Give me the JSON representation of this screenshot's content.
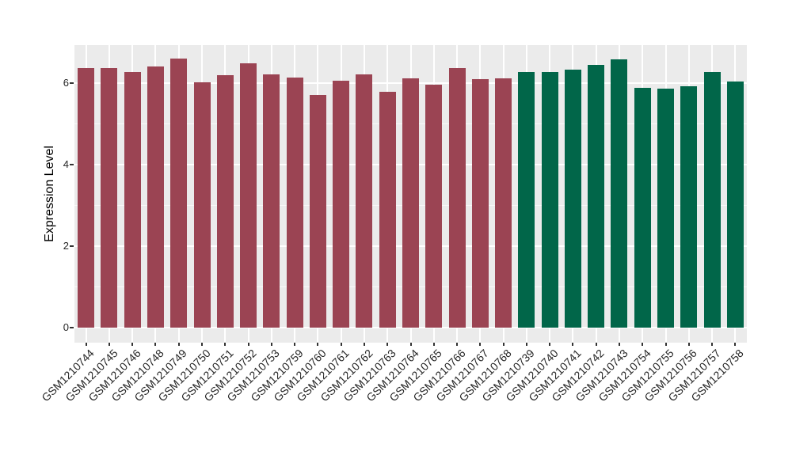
{
  "figure": {
    "background": "#FFFFFF",
    "panel_background": "#EBEBEB",
    "gridline_color": "#FFFFFF",
    "tick_mark_color": "#333333",
    "axis_text_color": "#262626"
  },
  "chart_data": {
    "type": "bar",
    "title": "",
    "xlabel": "",
    "ylabel": "Expression Level",
    "ylim": [
      0,
      6.9
    ],
    "y_major_ticks": [
      0,
      2,
      4,
      6
    ],
    "y_minor_gridlines": [
      1,
      3,
      5
    ],
    "grid": "on",
    "legend_position": "none",
    "categories": [
      "GSM1210744",
      "GSM1210745",
      "GSM1210746",
      "GSM1210748",
      "GSM1210749",
      "GSM1210750",
      "GSM1210751",
      "GSM1210752",
      "GSM1210753",
      "GSM1210759",
      "GSM1210760",
      "GSM1210761",
      "GSM1210762",
      "GSM1210763",
      "GSM1210764",
      "GSM1210765",
      "GSM1210766",
      "GSM1210767",
      "GSM1210768",
      "GSM1210739",
      "GSM1210740",
      "GSM1210741",
      "GSM1210742",
      "GSM1210743",
      "GSM1210754",
      "GSM1210755",
      "GSM1210756",
      "GSM1210757",
      "GSM1210758"
    ],
    "values": [
      6.36,
      6.36,
      6.27,
      6.39,
      6.6,
      6.01,
      6.18,
      6.47,
      6.2,
      6.13,
      5.71,
      6.04,
      6.2,
      5.77,
      6.1,
      5.96,
      6.36,
      6.08,
      6.11,
      6.27,
      6.27,
      6.32,
      6.44,
      6.58,
      5.88,
      5.86,
      5.92,
      6.26,
      6.02
    ],
    "bar_groups": [
      "group1",
      "group1",
      "group1",
      "group1",
      "group1",
      "group1",
      "group1",
      "group1",
      "group1",
      "group1",
      "group1",
      "group1",
      "group1",
      "group1",
      "group1",
      "group1",
      "group1",
      "group1",
      "group1",
      "group2",
      "group2",
      "group2",
      "group2",
      "group2",
      "group2",
      "group2",
      "group2",
      "group2",
      "group2"
    ],
    "group_colors": {
      "group1": "#9B4453",
      "group2": "#016649"
    }
  }
}
